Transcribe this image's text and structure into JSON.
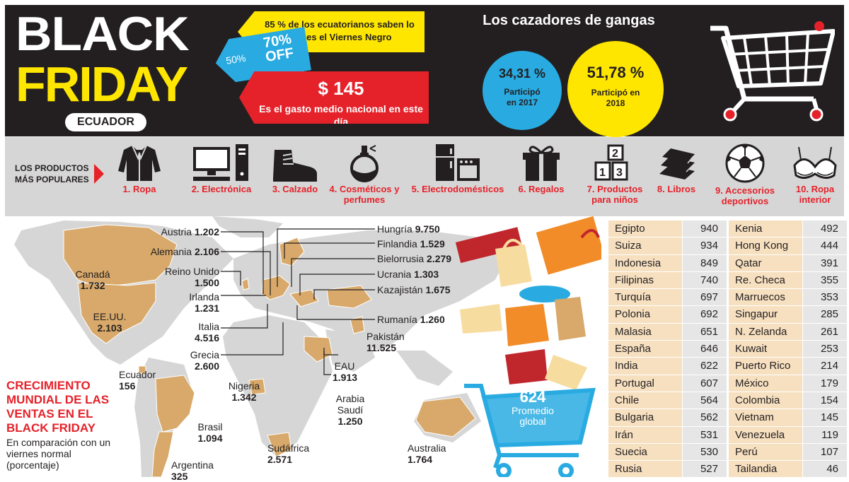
{
  "header": {
    "black": "BLACK",
    "friday": "FRIDAY",
    "country": "ECUADOR",
    "tag_yellow": "85 % de los ecuatorianos saben lo que es el Viernes Negro",
    "tag_blue_small": "50%",
    "tag_blue_big": "70% OFF",
    "tag_red_amount": "$ 145",
    "tag_red_text": "Es el gasto medio nacional en este día",
    "hunters_title": "Los cazadores de gangas",
    "stat_2017_pct": "34,31 %",
    "stat_2017_text": "Participó en 2017",
    "stat_2018_pct": "51,78 %",
    "stat_2018_text": "Participó en 2018"
  },
  "products": {
    "heading": "LOS PRODUCTOS MÁS POPULARES",
    "items": [
      {
        "label": "1. Ropa",
        "icon": "jacket-icon"
      },
      {
        "label": "2. Electrónica",
        "icon": "computer-icon"
      },
      {
        "label": "3. Calzado",
        "icon": "boot-icon"
      },
      {
        "label": "4. Cosméticos y perfumes",
        "icon": "perfume-icon"
      },
      {
        "label": "5. Electrodomésticos",
        "icon": "appliances-icon"
      },
      {
        "label": "6. Regalos",
        "icon": "gift-icon"
      },
      {
        "label": "7. Productos para niños",
        "icon": "blocks-icon"
      },
      {
        "label": "8. Libros",
        "icon": "books-icon"
      },
      {
        "label": "9. Accesorios deportivos",
        "icon": "soccer-ball-icon"
      },
      {
        "label": "10. Ropa interior",
        "icon": "bra-icon"
      }
    ]
  },
  "map": {
    "countries": [
      {
        "name": "Canadá",
        "value": "1.732"
      },
      {
        "name": "EE.UU.",
        "value": "2.103"
      },
      {
        "name": "Ecuador",
        "value": "156"
      },
      {
        "name": "Brasil",
        "value": "1.094"
      },
      {
        "name": "Argentina",
        "value": "325"
      },
      {
        "name": "Austria",
        "value": "1.202"
      },
      {
        "name": "Alemania",
        "value": "2.106"
      },
      {
        "name": "Reino Unido",
        "value": "1.500"
      },
      {
        "name": "Irlanda",
        "value": "1.231"
      },
      {
        "name": "Italia",
        "value": "4.516"
      },
      {
        "name": "Grecia",
        "value": "2.600"
      },
      {
        "name": "Nigeria",
        "value": "1.342"
      },
      {
        "name": "Sudáfrica",
        "value": "2.571"
      },
      {
        "name": "Hungría",
        "value": "9.750"
      },
      {
        "name": "Finlandia",
        "value": "1.529"
      },
      {
        "name": "Bielorrusia",
        "value": "2.279"
      },
      {
        "name": "Ucrania",
        "value": "1.303"
      },
      {
        "name": "Kazajistán",
        "value": "1.675"
      },
      {
        "name": "Rumanía",
        "value": "1.260"
      },
      {
        "name": "Pakistán",
        "value": "11.525"
      },
      {
        "name": "EAU",
        "value": "1.913"
      },
      {
        "name": "Arabia Saudí",
        "value": "1.250"
      },
      {
        "name": "Australia",
        "value": "1.764"
      }
    ],
    "growth_title": "CRECIMIENTO MUNDIAL DE LAS VENTAS EN EL BLACK FRIDAY",
    "growth_sub": "En comparación con un viernes normal (porcentaje)",
    "avg_value": "624",
    "avg_label": "Promedio global"
  },
  "table_left": [
    [
      "Egipto",
      "940"
    ],
    [
      "Suiza",
      "934"
    ],
    [
      "Indonesia",
      "849"
    ],
    [
      "Filipinas",
      "740"
    ],
    [
      "Turquía",
      "697"
    ],
    [
      "Polonia",
      "692"
    ],
    [
      "Malasia",
      "651"
    ],
    [
      "España",
      "646"
    ],
    [
      "India",
      "622"
    ],
    [
      "Portugal",
      "607"
    ],
    [
      "Chile",
      "564"
    ],
    [
      "Bulgaria",
      "562"
    ],
    [
      "Irán",
      "531"
    ],
    [
      "Suecia",
      "530"
    ],
    [
      "Rusia",
      "527"
    ]
  ],
  "table_right": [
    [
      "Kenia",
      "492"
    ],
    [
      "Hong Kong",
      "444"
    ],
    [
      "Qatar",
      "391"
    ],
    [
      "Re. Checa",
      "355"
    ],
    [
      "Marruecos",
      "353"
    ],
    [
      "Singapur",
      "285"
    ],
    [
      "N. Zelanda",
      "261"
    ],
    [
      "Kuwait",
      "253"
    ],
    [
      "Puerto Rico",
      "214"
    ],
    [
      "México",
      "179"
    ],
    [
      "Colombia",
      "154"
    ],
    [
      "Vietnam",
      "145"
    ],
    [
      "Venezuela",
      "119"
    ],
    [
      "Perú",
      "107"
    ],
    [
      "Tailandia",
      "46"
    ]
  ],
  "colors": {
    "yellow": "#ffe600",
    "red": "#e5222a",
    "blue": "#29abe2",
    "dark": "#231f20",
    "land": "#d8a96a",
    "sea": "#d6d6d6"
  }
}
